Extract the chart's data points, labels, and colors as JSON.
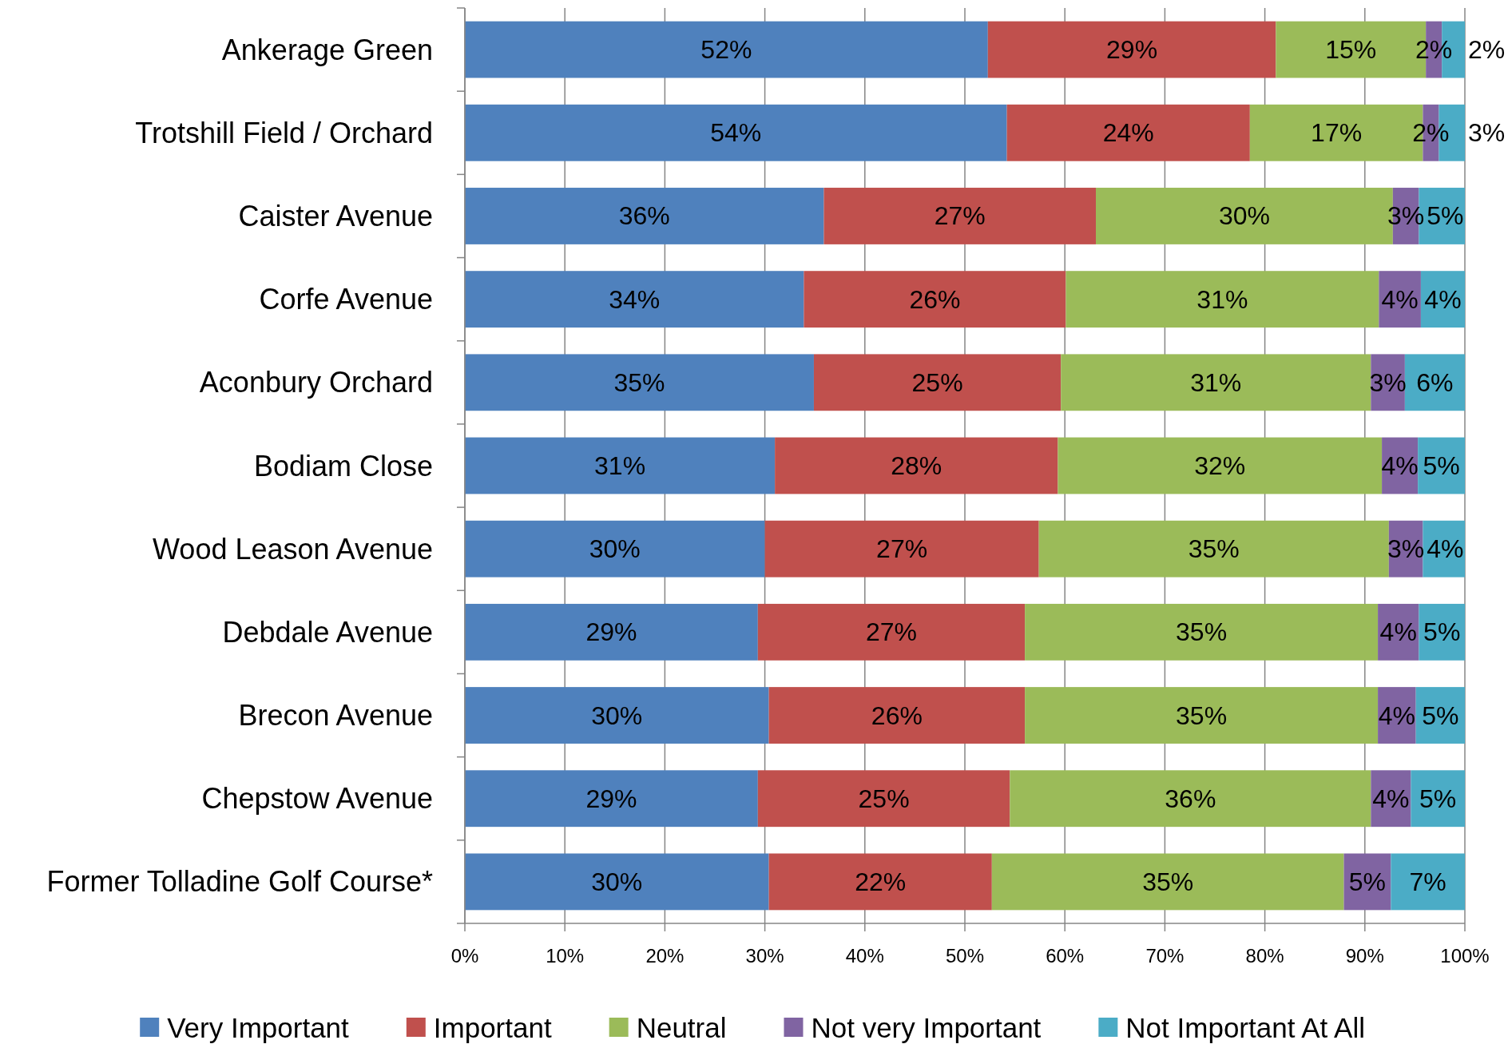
{
  "chart_data": {
    "type": "bar",
    "orientation": "horizontal",
    "stacked": true,
    "categories": [
      "Ankerage Green",
      "Trotshill Field / Orchard",
      "Caister Avenue",
      "Corfe Avenue",
      "Aconbury Orchard",
      "Bodiam Close",
      "Wood Leason Avenue",
      "Debdale Avenue",
      "Brecon Avenue",
      "Chepstow Avenue",
      "Former Tolladine Golf Course*"
    ],
    "series": [
      {
        "name": "Very Important",
        "color": "#4f81bd",
        "values": [
          52.3,
          54.2,
          35.9,
          33.9,
          34.9,
          31.0,
          30.0,
          29.3,
          30.4,
          29.3,
          30.4
        ],
        "value_labels": [
          "52%",
          "54%",
          "36%",
          "34%",
          "35%",
          "31%",
          "30%",
          "29%",
          "30%",
          "29%",
          "30%"
        ]
      },
      {
        "name": "Important",
        "color": "#c0504d",
        "values": [
          28.8,
          24.3,
          27.2,
          26.2,
          24.7,
          28.3,
          27.4,
          26.7,
          25.6,
          25.2,
          22.3
        ],
        "value_labels": [
          "29%",
          "24%",
          "27%",
          "26%",
          "25%",
          "28%",
          "27%",
          "27%",
          "26%",
          "25%",
          "22%"
        ]
      },
      {
        "name": "Neutral",
        "color": "#9bbb59",
        "values": [
          15.0,
          17.3,
          29.7,
          31.3,
          31.0,
          32.4,
          35.0,
          35.3,
          35.3,
          36.1,
          35.2
        ],
        "value_labels": [
          "15%",
          "17%",
          "30%",
          "31%",
          "31%",
          "32%",
          "35%",
          "35%",
          "35%",
          "36%",
          "35%"
        ]
      },
      {
        "name": "Not very Important",
        "color": "#8064a2",
        "values": [
          1.6,
          1.6,
          2.6,
          4.2,
          3.4,
          3.6,
          3.4,
          4.1,
          3.8,
          4.0,
          4.7
        ],
        "value_labels": [
          "2%",
          "2%",
          "3%",
          "4%",
          "3%",
          "4%",
          "3%",
          "4%",
          "4%",
          "4%",
          "5%"
        ]
      },
      {
        "name": "Not Important At All",
        "color": "#4bacc6",
        "values": [
          2.3,
          2.6,
          4.6,
          4.4,
          6.0,
          4.7,
          4.2,
          4.6,
          4.9,
          5.4,
          7.4
        ],
        "value_labels": [
          "2%",
          "3%",
          "5%",
          "4%",
          "6%",
          "5%",
          "4%",
          "5%",
          "5%",
          "5%",
          "7%"
        ]
      }
    ],
    "xlim": [
      0,
      100
    ],
    "xticks": [
      {
        "value": 0,
        "label": "0%"
      },
      {
        "value": 10,
        "label": "10%"
      },
      {
        "value": 20,
        "label": "20%"
      },
      {
        "value": 30,
        "label": "30%"
      },
      {
        "value": 40,
        "label": "40%"
      },
      {
        "value": 50,
        "label": "50%"
      },
      {
        "value": 60,
        "label": "60%"
      },
      {
        "value": 70,
        "label": "70%"
      },
      {
        "value": 80,
        "label": "80%"
      },
      {
        "value": 90,
        "label": "90%"
      },
      {
        "value": 100,
        "label": "100%"
      }
    ],
    "grid": "x",
    "legend": "bottom"
  }
}
